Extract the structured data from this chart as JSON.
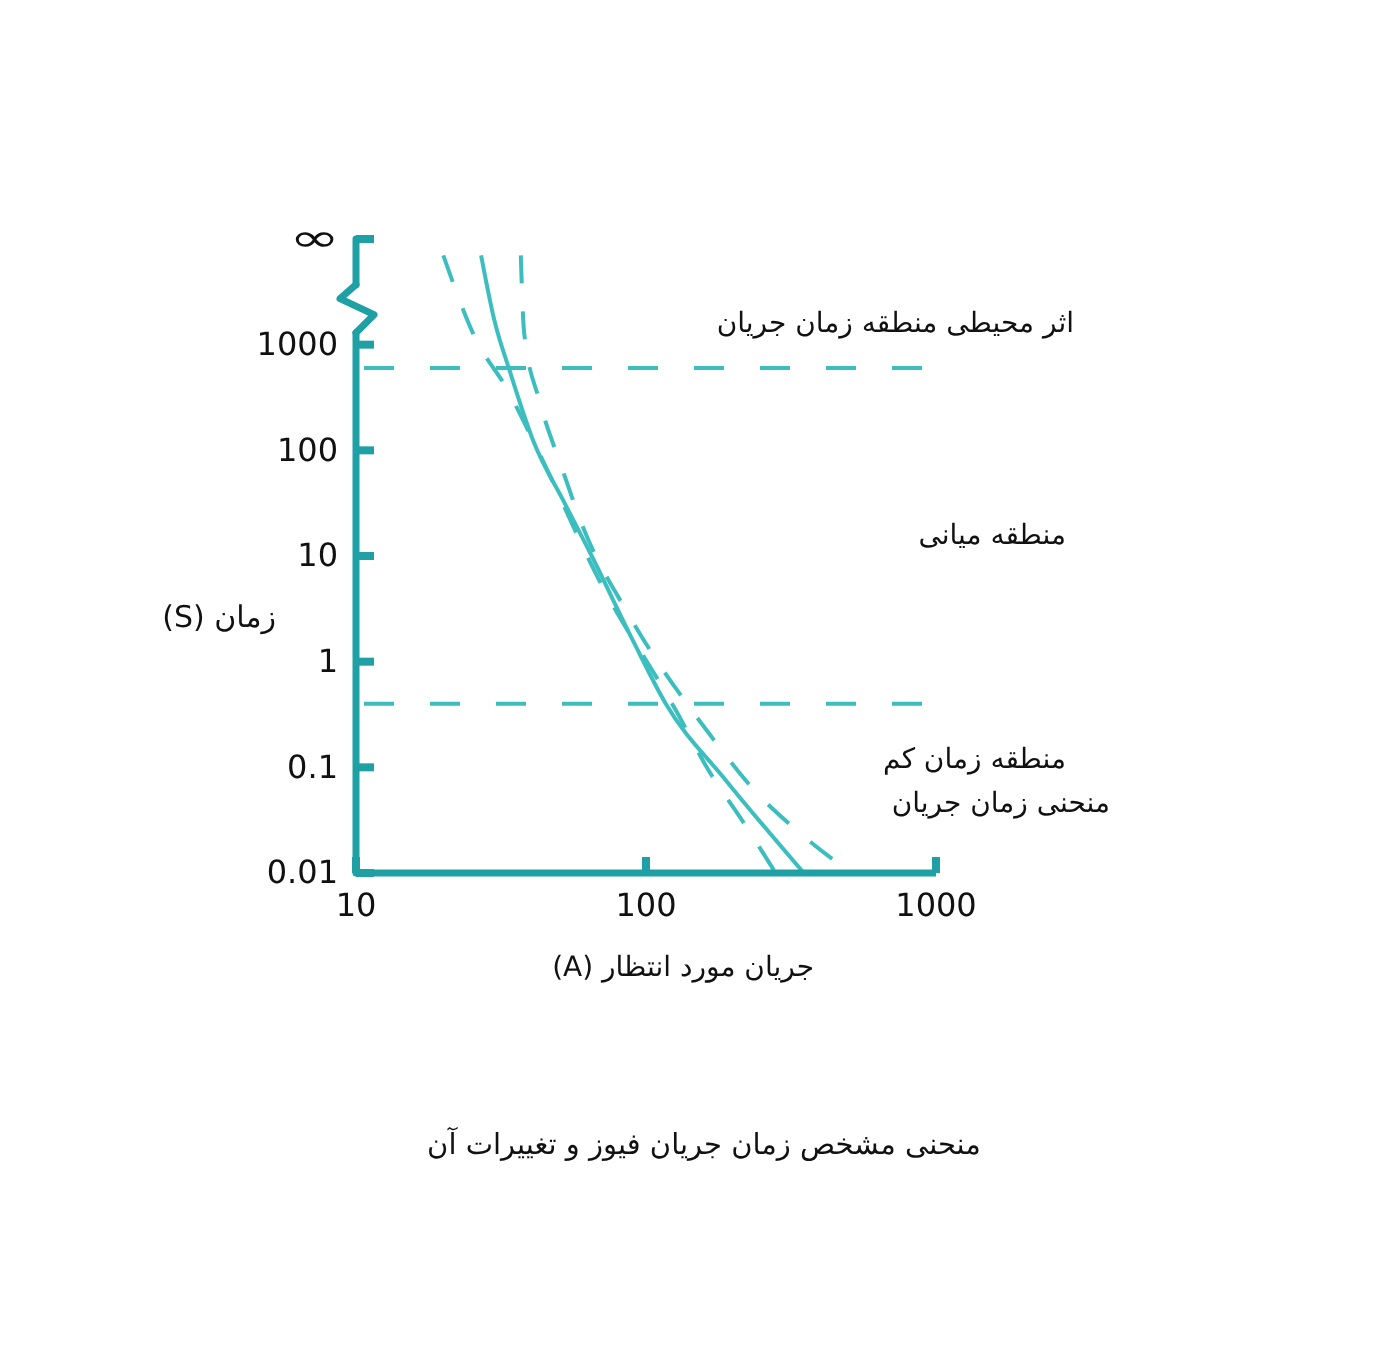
{
  "chart_data": {
    "type": "line",
    "title": "منحنی مشخص زمان جریان فیوز و تغییرات آن",
    "xlabel": "جریان مورد انتظار (A)",
    "ylabel": "زمان (S)",
    "log": "xy",
    "xlim": [
      10,
      1000
    ],
    "xticks": [
      10,
      100,
      1000
    ],
    "ylim": [
      0.01,
      10000
    ],
    "yticks": [
      0.01,
      0.1,
      1,
      10,
      100,
      1000,
      {
        "value": 10000,
        "label": "∞"
      }
    ],
    "series": [
      {
        "color": "#3cbebe",
        "line_style": "solid",
        "x": [
          27,
          30,
          34,
          41,
          52,
          65,
          90,
          117,
          188,
          350
        ],
        "values": [
          7000,
          1700,
          550,
          120,
          33,
          10,
          1.6,
          0.4,
          0.076,
          0.01
        ]
      },
      {
        "color": "#3cbebe",
        "line_style": "dashed",
        "x": [
          20,
          26,
          33,
          42,
          69,
          128,
          162,
          217,
          280
        ],
        "values": [
          7000,
          1100,
          390,
          105,
          5.9,
          0.33,
          0.1,
          0.03,
          0.01
        ]
      },
      {
        "color": "#3cbebe",
        "line_style": "dashed",
        "x": [
          37,
          38,
          43,
          51,
          61,
          87,
          167,
          236,
          345,
          510
        ],
        "values": [
          7000,
          1300,
          290,
          71,
          18,
          2.8,
          0.2,
          0.061,
          0.023,
          0.01
        ]
      }
    ],
    "ref_lines": [
      {
        "axis": "y",
        "value": 600,
        "color": "#3cbebe",
        "line_style": "dashed"
      },
      {
        "axis": "y",
        "value": 0.4,
        "color": "#3cbebe",
        "line_style": "dashed"
      }
    ],
    "annotations": [
      "اثر محیطی منطقه زمان جریان",
      "منطقه میانی",
      "منطقه زمان کم",
      "منحنی زمان جریان"
    ]
  }
}
